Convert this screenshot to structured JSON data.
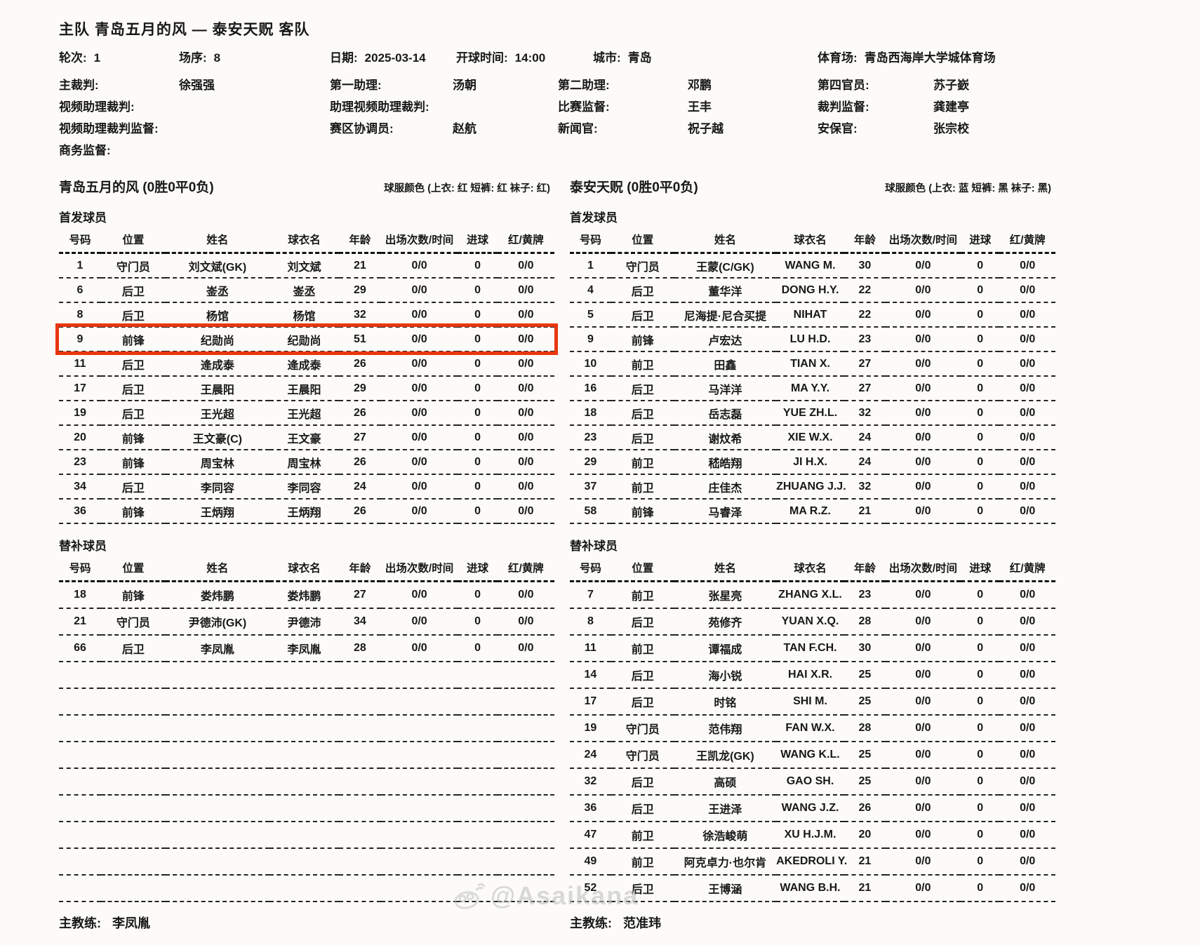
{
  "page": {
    "title": "主队 青岛五月的风 — 泰安天贶 客队",
    "watermark": "@Asaikana"
  },
  "match_info": [
    {
      "label": "轮次:",
      "value": "1"
    },
    {
      "label": "场序:",
      "value": "8"
    },
    {
      "label": "日期:",
      "value": "2025-03-14"
    },
    {
      "label": "开球时间:",
      "value": "14:00"
    },
    {
      "label": "城市:",
      "value": "青岛"
    },
    {
      "label": "体育场:",
      "value": "青岛西海岸大学城体育场"
    }
  ],
  "officials_rows": [
    [
      {
        "label": "主裁判:",
        "value": "徐强强"
      },
      {
        "label": "第一助理:",
        "value": "汤朝"
      },
      {
        "label": "第二助理:",
        "value": "邓鹏"
      },
      {
        "label": "第四官员:",
        "value": "苏子嶔"
      }
    ],
    [
      {
        "label": "视频助理裁判:",
        "value": ""
      },
      {
        "label": "助理视频助理裁判:",
        "value": ""
      },
      {
        "label": "比赛监督:",
        "value": "王丰"
      },
      {
        "label": "裁判监督:",
        "value": "龚建亭"
      }
    ],
    [
      {
        "label": "视频助理裁判监督:",
        "value": ""
      },
      {
        "label": "赛区协调员:",
        "value": "赵航"
      },
      {
        "label": "新闻官:",
        "value": "祝子越"
      },
      {
        "label": "安保官:",
        "value": "张宗校"
      }
    ],
    [
      {
        "label": "商务监督:",
        "value": ""
      }
    ]
  ],
  "table_columns": [
    "号码",
    "位置",
    "姓名",
    "球衣名",
    "年龄",
    "出场次数/时间",
    "进球",
    "红/黄牌"
  ],
  "sections": {
    "starters": "首发球员",
    "subs": "替补球员",
    "coach": "主教练:"
  },
  "teams": [
    {
      "name": "青岛五月的风",
      "record": "(0胜0平0负)",
      "kit": "球服颜色 (上衣: 红 短裤: 红 袜子: 红)",
      "coach": "李凤胤",
      "empty_sub_rows": 9,
      "starters": [
        {
          "no": "1",
          "pos": "守门员",
          "name": "刘文斌(GK)",
          "jersey": "刘文斌",
          "age": "21",
          "apps": "0/0",
          "goals": "0",
          "cards": "0/0"
        },
        {
          "no": "6",
          "pos": "后卫",
          "name": "崟丞",
          "jersey": "崟丞",
          "age": "29",
          "apps": "0/0",
          "goals": "0",
          "cards": "0/0"
        },
        {
          "no": "8",
          "pos": "后卫",
          "name": "杨馆",
          "jersey": "杨馆",
          "age": "32",
          "apps": "0/0",
          "goals": "0",
          "cards": "0/0"
        },
        {
          "no": "9",
          "pos": "前锋",
          "name": "纪勋尚",
          "jersey": "纪勋尚",
          "age": "51",
          "apps": "0/0",
          "goals": "0",
          "cards": "0/0",
          "highlight": true
        },
        {
          "no": "11",
          "pos": "后卫",
          "name": "逄成泰",
          "jersey": "逄成泰",
          "age": "26",
          "apps": "0/0",
          "goals": "0",
          "cards": "0/0"
        },
        {
          "no": "17",
          "pos": "后卫",
          "name": "王晨阳",
          "jersey": "王晨阳",
          "age": "29",
          "apps": "0/0",
          "goals": "0",
          "cards": "0/0"
        },
        {
          "no": "19",
          "pos": "后卫",
          "name": "王光超",
          "jersey": "王光超",
          "age": "26",
          "apps": "0/0",
          "goals": "0",
          "cards": "0/0"
        },
        {
          "no": "20",
          "pos": "前锋",
          "name": "王文豪(C)",
          "jersey": "王文豪",
          "age": "27",
          "apps": "0/0",
          "goals": "0",
          "cards": "0/0"
        },
        {
          "no": "23",
          "pos": "前锋",
          "name": "周宝林",
          "jersey": "周宝林",
          "age": "26",
          "apps": "0/0",
          "goals": "0",
          "cards": "0/0"
        },
        {
          "no": "34",
          "pos": "后卫",
          "name": "李同容",
          "jersey": "李同容",
          "age": "24",
          "apps": "0/0",
          "goals": "0",
          "cards": "0/0"
        },
        {
          "no": "36",
          "pos": "前锋",
          "name": "王炳翔",
          "jersey": "王炳翔",
          "age": "26",
          "apps": "0/0",
          "goals": "0",
          "cards": "0/0"
        }
      ],
      "subs": [
        {
          "no": "18",
          "pos": "前锋",
          "name": "娄炜鹏",
          "jersey": "娄炜鹏",
          "age": "27",
          "apps": "0/0",
          "goals": "0",
          "cards": "0/0"
        },
        {
          "no": "21",
          "pos": "守门员",
          "name": "尹德沛(GK)",
          "jersey": "尹德沛",
          "age": "34",
          "apps": "0/0",
          "goals": "0",
          "cards": "0/0"
        },
        {
          "no": "66",
          "pos": "后卫",
          "name": "李凤胤",
          "jersey": "李凤胤",
          "age": "28",
          "apps": "0/0",
          "goals": "0",
          "cards": "0/0"
        }
      ]
    },
    {
      "name": "泰安天贶",
      "record": "(0胜0平0负)",
      "kit": "球服颜色 (上衣: 蓝  短裤: 黑  袜子: 黑)",
      "coach": "范准玮",
      "empty_sub_rows": 0,
      "starters": [
        {
          "no": "1",
          "pos": "守门员",
          "name": "王蒙(C/GK)",
          "jersey": "WANG M.",
          "age": "30",
          "apps": "0/0",
          "goals": "0",
          "cards": "0/0"
        },
        {
          "no": "4",
          "pos": "后卫",
          "name": "董华洋",
          "jersey": "DONG H.Y.",
          "age": "22",
          "apps": "0/0",
          "goals": "0",
          "cards": "0/0"
        },
        {
          "no": "5",
          "pos": "后卫",
          "name": "尼海提·尼合买提",
          "jersey": "NIHAT",
          "age": "22",
          "apps": "0/0",
          "goals": "0",
          "cards": "0/0"
        },
        {
          "no": "9",
          "pos": "前锋",
          "name": "卢宏达",
          "jersey": "LU H.D.",
          "age": "23",
          "apps": "0/0",
          "goals": "0",
          "cards": "0/0"
        },
        {
          "no": "10",
          "pos": "前卫",
          "name": "田鑫",
          "jersey": "TIAN X.",
          "age": "27",
          "apps": "0/0",
          "goals": "0",
          "cards": "0/0"
        },
        {
          "no": "16",
          "pos": "后卫",
          "name": "马洋洋",
          "jersey": "MA Y.Y.",
          "age": "27",
          "apps": "0/0",
          "goals": "0",
          "cards": "0/0"
        },
        {
          "no": "18",
          "pos": "后卫",
          "name": "岳志磊",
          "jersey": "YUE ZH.L.",
          "age": "32",
          "apps": "0/0",
          "goals": "0",
          "cards": "0/0"
        },
        {
          "no": "23",
          "pos": "后卫",
          "name": "谢炆希",
          "jersey": "XIE W.X.",
          "age": "24",
          "apps": "0/0",
          "goals": "0",
          "cards": "0/0"
        },
        {
          "no": "29",
          "pos": "前卫",
          "name": "嵇皓翔",
          "jersey": "JI H.X.",
          "age": "24",
          "apps": "0/0",
          "goals": "0",
          "cards": "0/0"
        },
        {
          "no": "37",
          "pos": "前卫",
          "name": "庄佳杰",
          "jersey": "ZHUANG J.J.",
          "age": "32",
          "apps": "0/0",
          "goals": "0",
          "cards": "0/0"
        },
        {
          "no": "58",
          "pos": "前锋",
          "name": "马睿泽",
          "jersey": "MA R.Z.",
          "age": "21",
          "apps": "0/0",
          "goals": "0",
          "cards": "0/0"
        }
      ],
      "subs": [
        {
          "no": "7",
          "pos": "前卫",
          "name": "张星亮",
          "jersey": "ZHANG X.L.",
          "age": "23",
          "apps": "0/0",
          "goals": "0",
          "cards": "0/0"
        },
        {
          "no": "8",
          "pos": "后卫",
          "name": "苑修齐",
          "jersey": "YUAN X.Q.",
          "age": "28",
          "apps": "0/0",
          "goals": "0",
          "cards": "0/0"
        },
        {
          "no": "11",
          "pos": "前卫",
          "name": "谭福成",
          "jersey": "TAN F.CH.",
          "age": "30",
          "apps": "0/0",
          "goals": "0",
          "cards": "0/0"
        },
        {
          "no": "14",
          "pos": "后卫",
          "name": "海小锐",
          "jersey": "HAI X.R.",
          "age": "25",
          "apps": "0/0",
          "goals": "0",
          "cards": "0/0"
        },
        {
          "no": "17",
          "pos": "后卫",
          "name": "时铭",
          "jersey": "SHI M.",
          "age": "25",
          "apps": "0/0",
          "goals": "0",
          "cards": "0/0"
        },
        {
          "no": "19",
          "pos": "守门员",
          "name": "范伟翔",
          "jersey": "FAN W.X.",
          "age": "28",
          "apps": "0/0",
          "goals": "0",
          "cards": "0/0"
        },
        {
          "no": "24",
          "pos": "守门员",
          "name": "王凯龙(GK)",
          "jersey": "WANG K.L.",
          "age": "25",
          "apps": "0/0",
          "goals": "0",
          "cards": "0/0"
        },
        {
          "no": "32",
          "pos": "后卫",
          "name": "高硕",
          "jersey": "GAO SH.",
          "age": "25",
          "apps": "0/0",
          "goals": "0",
          "cards": "0/0"
        },
        {
          "no": "36",
          "pos": "后卫",
          "name": "王进泽",
          "jersey": "WANG J.Z.",
          "age": "26",
          "apps": "0/0",
          "goals": "0",
          "cards": "0/0"
        },
        {
          "no": "47",
          "pos": "前卫",
          "name": "徐浩峻萌",
          "jersey": "XU H.J.M.",
          "age": "20",
          "apps": "0/0",
          "goals": "0",
          "cards": "0/0"
        },
        {
          "no": "49",
          "pos": "前卫",
          "name": "阿克卓力·也尔肯",
          "jersey": "AKEDROLI Y.",
          "age": "21",
          "apps": "0/0",
          "goals": "0",
          "cards": "0/0"
        },
        {
          "no": "52",
          "pos": "后卫",
          "name": "王博涵",
          "jersey": "WANG B.H.",
          "age": "21",
          "apps": "0/0",
          "goals": "0",
          "cards": "0/0"
        }
      ]
    }
  ]
}
